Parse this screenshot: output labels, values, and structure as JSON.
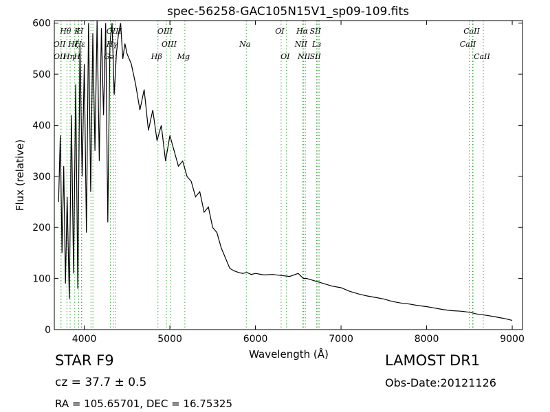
{
  "chart_data": {
    "type": "line",
    "title": "spec-56258-GAC105N15V1_sp09-109.fits",
    "xlabel": "Wavelength (Å)",
    "ylabel": "Flux (relative)",
    "xlim": [
      3650,
      9120
    ],
    "ylim": [
      0,
      605
    ],
    "xticks": [
      "4000",
      "5000",
      "6000",
      "7000",
      "8000",
      "9000"
    ],
    "yticks": [
      "0",
      "100",
      "200",
      "300",
      "400",
      "500",
      "600"
    ],
    "grid": false,
    "series": [
      {
        "x": [
          3700,
          3720,
          3740,
          3760,
          3780,
          3800,
          3825,
          3850,
          3875,
          3900,
          3925,
          3950,
          3975,
          4000,
          4025,
          4050,
          4075,
          4100,
          4125,
          4150,
          4175,
          4200,
          4225,
          4250,
          4275,
          4300,
          4325,
          4350,
          4375,
          4400,
          4425,
          4450,
          4475,
          4500,
          4550,
          4600,
          4650,
          4700,
          4750,
          4800,
          4850,
          4900,
          4950,
          5000,
          5050,
          5100,
          5150,
          5200,
          5250,
          5300,
          5350,
          5400,
          5450,
          5500,
          5550,
          5600,
          5650,
          5700,
          5750,
          5800,
          5850,
          5900,
          5950,
          6000,
          6100,
          6200,
          6300,
          6400,
          6500,
          6560,
          6600,
          6700,
          6800,
          6900,
          7000,
          7100,
          7200,
          7300,
          7400,
          7500,
          7600,
          7700,
          7800,
          7900,
          8000,
          8100,
          8200,
          8300,
          8400,
          8500,
          8600,
          8700,
          8800,
          8900,
          9000
        ],
        "y": [
          250,
          380,
          150,
          320,
          90,
          260,
          60,
          420,
          110,
          480,
          80,
          560,
          300,
          520,
          190,
          600,
          270,
          580,
          350,
          605,
          330,
          590,
          420,
          600,
          210,
          560,
          600,
          460,
          540,
          580,
          600,
          530,
          560,
          540,
          520,
          480,
          430,
          470,
          390,
          430,
          370,
          400,
          330,
          380,
          350,
          320,
          330,
          300,
          290,
          260,
          270,
          230,
          240,
          200,
          190,
          160,
          140,
          120,
          115,
          112,
          110,
          112,
          108,
          110,
          107,
          108,
          106,
          104,
          110,
          100,
          100,
          95,
          90,
          85,
          82,
          75,
          70,
          66,
          63,
          60,
          55,
          52,
          50,
          47,
          45,
          42,
          39,
          37,
          36,
          34,
          30,
          28,
          25,
          22,
          18
        ]
      }
    ],
    "lines": [
      {
        "label": "Hθ",
        "x": 3797,
        "row": 0
      },
      {
        "label": "K",
        "x": 3934,
        "row": 0
      },
      {
        "label": "H",
        "x": 3968,
        "row": 0
      },
      {
        "label": "OIII",
        "x": 4363,
        "row": 0
      },
      {
        "label": "OIII",
        "x": 4959,
        "row": 0
      },
      {
        "label": "OI",
        "x": 6300,
        "row": 0
      },
      {
        "label": "Hα",
        "x": 6563,
        "row": 0
      },
      {
        "label": "SII",
        "x": 6716,
        "row": 0
      },
      {
        "label": "CaII",
        "x": 8542,
        "row": 0
      },
      {
        "label": "OII",
        "x": 3727,
        "row": 1
      },
      {
        "label": "Hζ",
        "x": 3889,
        "row": 1
      },
      {
        "label": "Hε",
        "x": 3970,
        "row": 1
      },
      {
        "label": "Hγ",
        "x": 4340,
        "row": 1
      },
      {
        "label": "OIII",
        "x": 5007,
        "row": 1
      },
      {
        "label": "Na",
        "x": 5893,
        "row": 1
      },
      {
        "label": "NII",
        "x": 6548,
        "row": 1
      },
      {
        "label": "Lɜ",
        "x": 6731,
        "row": 1
      },
      {
        "label": "CaII",
        "x": 8498,
        "row": 1
      },
      {
        "label": "OII",
        "x": 3729,
        "row": 2
      },
      {
        "label": "Hη",
        "x": 3835,
        "row": 2
      },
      {
        "label": "H",
        "x": 3933,
        "row": 2
      },
      {
        "label": "Gǝ",
        "x": 4305,
        "row": 2
      },
      {
        "label": "Hβ",
        "x": 4861,
        "row": 2
      },
      {
        "label": "Mg",
        "x": 5175,
        "row": 2
      },
      {
        "label": "OI",
        "x": 6363,
        "row": 2
      },
      {
        "label": "NII",
        "x": 6583,
        "row": 2
      },
      {
        "label": "SII",
        "x": 6716,
        "row": 2
      },
      {
        "label": "CaII",
        "x": 8662,
        "row": 2
      },
      {
        "label": "",
        "x": 4101,
        "row": 3
      },
      {
        "label": "",
        "x": 4078,
        "row": 3
      },
      {
        "label": "",
        "x": 6744,
        "row": 3
      },
      {
        "label": "",
        "x": 8537,
        "row": 3
      }
    ]
  },
  "info": {
    "object_class": "STAR   F9",
    "survey": "LAMOST DR1",
    "cz": "cz = 37.7 ± 0.5",
    "obs_date": "Obs-Date:20121126",
    "radec": "RA = 105.65701, DEC = 16.75325"
  },
  "colors": {
    "line_marker": "#3aa83a",
    "spectrum": "#000000"
  }
}
